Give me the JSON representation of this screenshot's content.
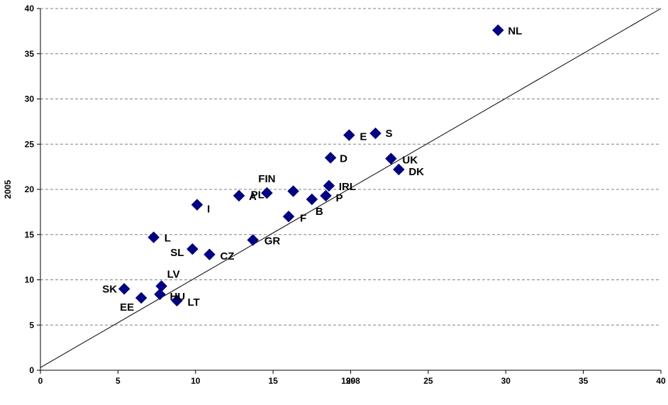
{
  "chart_data": {
    "type": "scatter",
    "xlabel": "1998",
    "ylabel": "2005",
    "xlim": [
      0,
      40
    ],
    "ylim": [
      0,
      40
    ],
    "x_ticks": [
      "0",
      "5",
      "10",
      "15",
      "20",
      "25",
      "30",
      "35",
      "40"
    ],
    "y_ticks": [
      "0",
      "5",
      "10",
      "15",
      "20",
      "25",
      "30",
      "35",
      "40"
    ],
    "grid": "horizontal dashed",
    "reference_line": {
      "from": [
        0,
        0.3
      ],
      "to": [
        40,
        40
      ]
    },
    "marker_color": "#000080",
    "points": [
      {
        "label": "NL",
        "x": 29.5,
        "y": 37.6
      },
      {
        "label": "E",
        "x": 19.9,
        "y": 26.0
      },
      {
        "label": "S",
        "x": 21.6,
        "y": 26.2
      },
      {
        "label": "D",
        "x": 18.7,
        "y": 23.5
      },
      {
        "label": "UK",
        "x": 22.6,
        "y": 23.4
      },
      {
        "label": "DK",
        "x": 23.1,
        "y": 22.2
      },
      {
        "label": "FIN",
        "x": 14.6,
        "y": 19.6
      },
      {
        "label": "A",
        "x": 12.8,
        "y": 19.3
      },
      {
        "label": "PL",
        "x": 16.3,
        "y": 19.8
      },
      {
        "label": "IRL",
        "x": 18.6,
        "y": 20.4
      },
      {
        "label": "P",
        "x": 18.4,
        "y": 19.3
      },
      {
        "label": "B",
        "x": 17.5,
        "y": 18.9
      },
      {
        "label": "I",
        "x": 10.1,
        "y": 18.3
      },
      {
        "label": "F",
        "x": 16.0,
        "y": 17.0
      },
      {
        "label": "L",
        "x": 7.3,
        "y": 14.7
      },
      {
        "label": "GR",
        "x": 13.7,
        "y": 14.4
      },
      {
        "label": "SL",
        "x": 9.8,
        "y": 13.4
      },
      {
        "label": "CZ",
        "x": 10.9,
        "y": 12.8
      },
      {
        "label": "LV",
        "x": 7.8,
        "y": 9.3
      },
      {
        "label": "SK",
        "x": 5.4,
        "y": 9.0
      },
      {
        "label": "HU",
        "x": 7.7,
        "y": 8.4
      },
      {
        "label": "EE",
        "x": 6.5,
        "y": 8.0
      },
      {
        "label": "LT",
        "x": 8.8,
        "y": 7.7
      }
    ]
  }
}
